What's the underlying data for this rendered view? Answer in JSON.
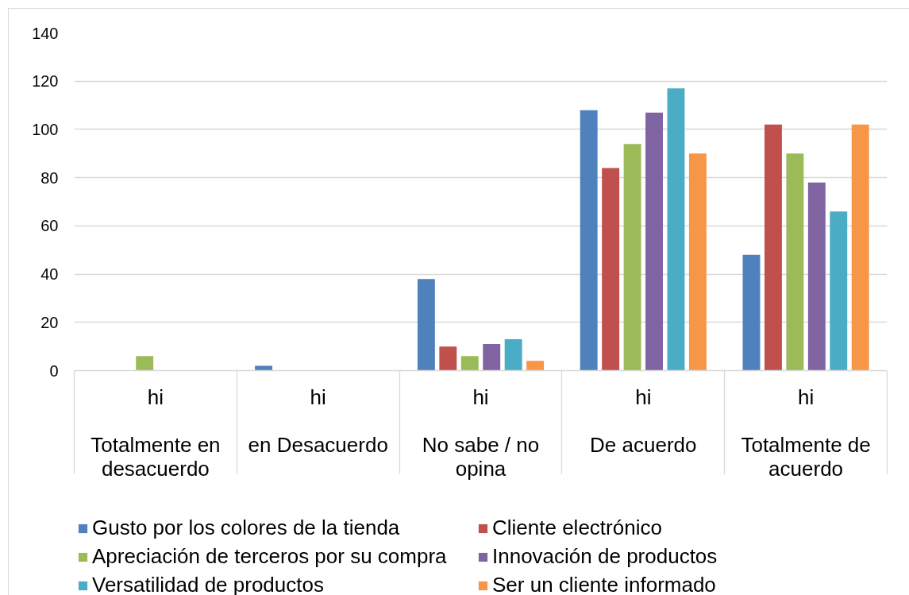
{
  "chart_data": {
    "type": "bar",
    "categories": [
      "hi\nTotalmente en desacuerdo",
      "hi\nen Desacuerdo",
      "hi\nNo sabe / no opina",
      "hi\nDe acuerdo",
      "hi\nTotalmente de acuerdo"
    ],
    "series": [
      {
        "name": "Gusto por los colores de la tienda",
        "color": "#4f81bd",
        "values": [
          0,
          2,
          38,
          108,
          48
        ]
      },
      {
        "name": "Cliente electrónico",
        "color": "#c0504d",
        "values": [
          0,
          0,
          10,
          84,
          102
        ]
      },
      {
        "name": "Apreciación de terceros por su compra",
        "color": "#9bbb59",
        "values": [
          6,
          0,
          6,
          94,
          90
        ]
      },
      {
        "name": "Innovación de productos",
        "color": "#8064a2",
        "values": [
          0,
          0,
          11,
          107,
          78
        ]
      },
      {
        "name": "Versatilidad de productos",
        "color": "#4bacc6",
        "values": [
          0,
          0,
          13,
          117,
          66
        ]
      },
      {
        "name": "Ser un cliente informado",
        "color": "#f79646",
        "values": [
          0,
          0,
          4,
          90,
          102
        ]
      }
    ],
    "ylim": [
      0,
      140
    ],
    "yticks": [
      0,
      20,
      40,
      60,
      80,
      100,
      120,
      140
    ],
    "grid": "y",
    "legend": "bottom"
  }
}
